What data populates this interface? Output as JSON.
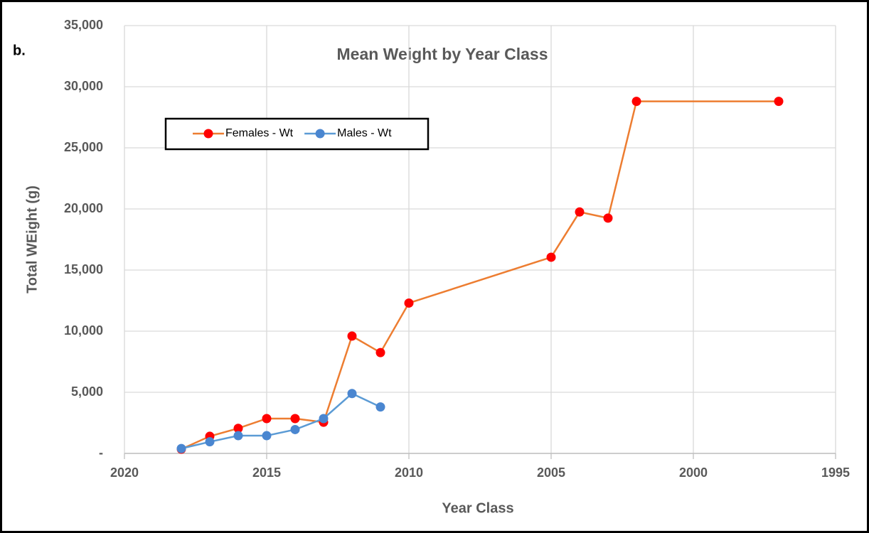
{
  "chart_data": {
    "type": "line",
    "panel_label": "b.",
    "title": "Mean Weight by Year Class",
    "x_label": "Year Class",
    "y_label": "Total WEight (g)",
    "xlim": [
      2020,
      1995
    ],
    "xticks": [
      2020,
      2015,
      2010,
      2005,
      2000,
      1995
    ],
    "ylim": [
      0,
      35000
    ],
    "yticks": [
      {
        "value": 0,
        "label": "-"
      },
      {
        "value": 5000,
        "label": "5,000"
      },
      {
        "value": 10000,
        "label": "10,000"
      },
      {
        "value": 15000,
        "label": "15,000"
      },
      {
        "value": 20000,
        "label": "20,000"
      },
      {
        "value": 25000,
        "label": "25,000"
      },
      {
        "value": 30000,
        "label": "30,000"
      },
      {
        "value": 35000,
        "label": "35,000"
      }
    ],
    "grid": true,
    "legend": "upper left",
    "series": [
      {
        "name": "Females - Wt",
        "color": "#ed7d31",
        "marker_color": "#ff0000",
        "x": [
          2018,
          2017,
          2016,
          2015,
          2014,
          2013,
          2012,
          2011,
          2010,
          2005,
          2004,
          2003,
          2002,
          1997
        ],
        "values": [
          350,
          1400,
          2050,
          2850,
          2850,
          2550,
          9600,
          8250,
          12300,
          16050,
          19750,
          19250,
          28800,
          28800
        ]
      },
      {
        "name": "Males - Wt",
        "color": "#5b9bd5",
        "marker_color": "#4a86d0",
        "x": [
          2018,
          2017,
          2016,
          2015,
          2014,
          2013,
          2012,
          2011
        ],
        "values": [
          400,
          950,
          1450,
          1450,
          1950,
          2850,
          4900,
          3800
        ]
      }
    ]
  }
}
